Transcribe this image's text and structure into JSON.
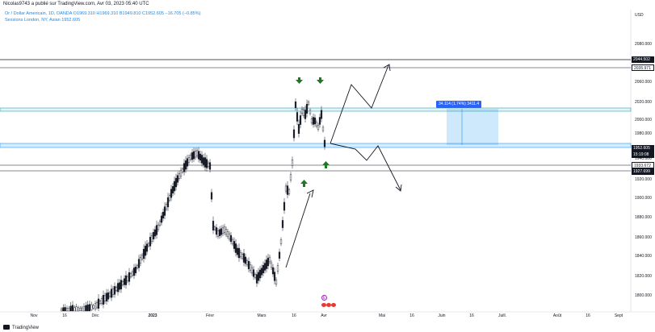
{
  "header": {
    "text": "Nicolas9743 a publié sur TradingView.com, Avr 03, 2023 05:40 UTC"
  },
  "symbol": {
    "line1": "Or / Dollar Americain, 1D, OANDA  O1969.310  H1969.310  B1949.810  C1952.605  −16.705 (−0.85%)",
    "line2": "Sessions London, NY, Asian   1952.605"
  },
  "price_axis": {
    "currency": "USD",
    "labels": [
      "2080.000",
      "2060.000",
      "2020.000",
      "2000.000",
      "1980.000",
      "1940.000",
      "1920.000",
      "1900.000",
      "1880.000",
      "1860.000",
      "1840.000",
      "1820.000",
      "1800.000"
    ],
    "badges": [
      {
        "label": "2044.502",
        "style": "dark"
      },
      {
        "label": "2035.971",
        "style": "light"
      },
      {
        "label": "1952.605",
        "style": "dark"
      },
      {
        "label": "15:19:08",
        "style": "dark"
      },
      {
        "label": "1933.672",
        "style": "light"
      },
      {
        "label": "1927.699",
        "style": "dark"
      }
    ]
  },
  "time_axis": {
    "labels": [
      "Nov",
      "16",
      "Déc",
      "2023",
      "Févr",
      "Mars",
      "16",
      "Avr",
      "Mai",
      "16",
      "Juin",
      "16",
      "Juill.",
      "Août",
      "16",
      "Sept"
    ]
  },
  "measure_tool": {
    "label": "34.114 (1.74%) 3411.4"
  },
  "event_marker": {
    "label": "E"
  },
  "footer": {
    "brand": "TradingView"
  },
  "colors": {
    "up": "#ffffff",
    "down": "#131722",
    "zone": "#2196f3",
    "arrow_green": "#1b7a1b",
    "measure": "#2962ff"
  }
}
